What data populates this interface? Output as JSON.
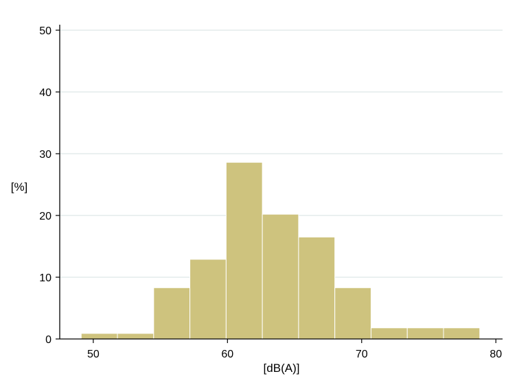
{
  "chart_data": {
    "type": "bar",
    "title": "",
    "xlabel": "[dB(A)]",
    "ylabel": "[%]",
    "bin_edges": [
      49.1,
      51.8,
      54.5,
      57.2,
      59.9,
      62.6,
      65.3,
      68.0,
      70.7,
      73.4,
      76.1,
      78.8
    ],
    "values": [
      0.9,
      0.9,
      8.3,
      12.9,
      28.6,
      20.2,
      16.5,
      8.3,
      1.8,
      1.8,
      1.8
    ],
    "xlim": [
      47.5,
      80.5
    ],
    "ylim": [
      0,
      50
    ],
    "xticks": [
      50,
      60,
      70,
      80
    ],
    "yticks": [
      0,
      10,
      20,
      30,
      40,
      50
    ],
    "grid": true,
    "colors": {
      "bar_fill": "#cec37e",
      "bar_stroke": "#ffffff",
      "grid": "#dde6e6",
      "axis": "#000000"
    }
  }
}
